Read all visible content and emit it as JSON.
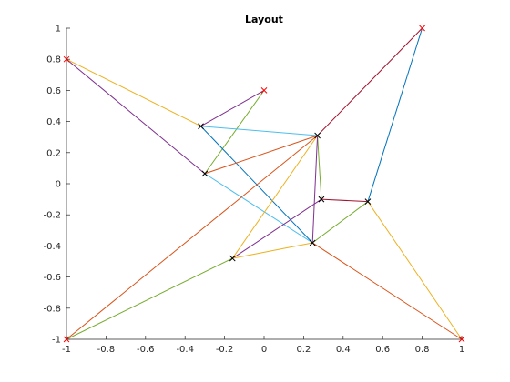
{
  "chart_data": {
    "type": "graph-layout",
    "title": "Layout",
    "xlim": [
      -1,
      1
    ],
    "ylim": [
      -1,
      1
    ],
    "grid": false,
    "x_ticks": [
      -1,
      -0.8,
      -0.6,
      -0.4,
      -0.2,
      0,
      0.2,
      0.4,
      0.6,
      0.8,
      1
    ],
    "x_tick_labels": [
      "-1",
      "-0.8",
      "-0.6",
      "-0.4",
      "-0.2",
      "0",
      "0.2",
      "0.4",
      "0.6",
      "0.8",
      "1"
    ],
    "y_ticks": [
      -1,
      -0.8,
      -0.6,
      -0.4,
      -0.2,
      0,
      0.2,
      0.4,
      0.6,
      0.8,
      1
    ],
    "y_tick_labels": [
      "-1",
      "-0.8",
      "-0.6",
      "-0.4",
      "-0.2",
      "0",
      "0.2",
      "0.4",
      "0.6",
      "0.8",
      "1"
    ],
    "fixed_nodes": {
      "marker": "x",
      "color": "#FF0000",
      "points": [
        [
          -1,
          0.8
        ],
        [
          0.0,
          0.6
        ],
        [
          0.8,
          1.0
        ],
        [
          -1,
          -1
        ],
        [
          1,
          -1
        ]
      ]
    },
    "free_nodes": {
      "marker": "x",
      "color": "#000000",
      "points": [
        [
          -0.32,
          0.37
        ],
        [
          -0.3,
          0.065
        ],
        [
          0.27,
          0.31
        ],
        [
          0.29,
          -0.1
        ],
        [
          0.525,
          -0.115
        ],
        [
          0.245,
          -0.38
        ],
        [
          -0.16,
          -0.48
        ]
      ]
    },
    "edges": [
      {
        "from": [
          -1,
          0.8
        ],
        "to": [
          -0.32,
          0.37
        ],
        "color": "#EDB120"
      },
      {
        "from": [
          -1,
          0.8
        ],
        "to": [
          -0.3,
          0.065
        ],
        "color": "#7E2F8E"
      },
      {
        "from": [
          -0.32,
          0.37
        ],
        "to": [
          0.0,
          0.6
        ],
        "color": "#7E2F8E"
      },
      {
        "from": [
          0.0,
          0.6
        ],
        "to": [
          -0.3,
          0.065
        ],
        "color": "#77AC30"
      },
      {
        "from": [
          -0.32,
          0.37
        ],
        "to": [
          0.27,
          0.31
        ],
        "color": "#4DBEEE"
      },
      {
        "from": [
          -0.32,
          0.37
        ],
        "to": [
          0.245,
          -0.38
        ],
        "color": "#0072BD"
      },
      {
        "from": [
          -0.3,
          0.065
        ],
        "to": [
          0.27,
          0.31
        ],
        "color": "#D95319"
      },
      {
        "from": [
          -0.3,
          0.065
        ],
        "to": [
          0.245,
          -0.38
        ],
        "color": "#4DBEEE"
      },
      {
        "from": [
          0.27,
          0.31
        ],
        "to": [
          0.8,
          1.0
        ],
        "color": "#A2142F"
      },
      {
        "from": [
          0.8,
          1.0
        ],
        "to": [
          0.525,
          -0.115
        ],
        "color": "#0072BD"
      },
      {
        "from": [
          0.27,
          0.31
        ],
        "to": [
          0.29,
          -0.1
        ],
        "color": "#77AC30"
      },
      {
        "from": [
          0.27,
          0.31
        ],
        "to": [
          0.245,
          -0.38
        ],
        "color": "#7E2F8E"
      },
      {
        "from": [
          0.27,
          0.31
        ],
        "to": [
          -0.16,
          -0.48
        ],
        "color": "#EDB120"
      },
      {
        "from": [
          0.29,
          -0.1
        ],
        "to": [
          0.525,
          -0.115
        ],
        "color": "#A2142F"
      },
      {
        "from": [
          0.29,
          -0.1
        ],
        "to": [
          -0.16,
          -0.48
        ],
        "color": "#7E2F8E"
      },
      {
        "from": [
          0.525,
          -0.115
        ],
        "to": [
          0.245,
          -0.38
        ],
        "color": "#77AC30"
      },
      {
        "from": [
          0.525,
          -0.115
        ],
        "to": [
          1,
          -1
        ],
        "color": "#EDB120"
      },
      {
        "from": [
          0.245,
          -0.38
        ],
        "to": [
          1,
          -1
        ],
        "color": "#D95319"
      },
      {
        "from": [
          0.245,
          -0.38
        ],
        "to": [
          -0.16,
          -0.48
        ],
        "color": "#EDB120"
      },
      {
        "from": [
          -0.16,
          -0.48
        ],
        "to": [
          -1,
          -1
        ],
        "color": "#77AC30"
      },
      {
        "from": [
          0.27,
          0.31
        ],
        "to": [
          -1,
          -1
        ],
        "color": "#D95319"
      }
    ]
  }
}
